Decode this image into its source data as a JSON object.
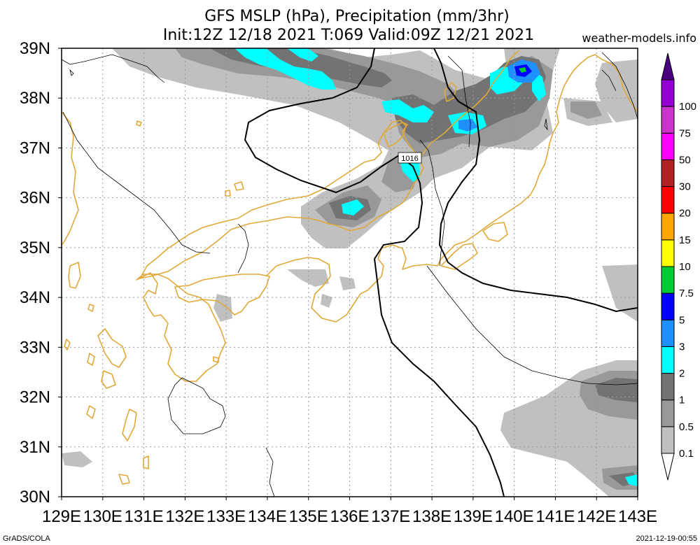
{
  "chart_data": {
    "type": "map",
    "title_line1": "GFS MSLP (hPa), Precipitation (mm/3hr)",
    "title_line2": "Init:12Z 12/18 2021 T:069 Valid:09Z 12/21 2021",
    "site": "weather-models.info",
    "footer_left": "GrADS/COLA",
    "footer_right": "2021-12-19-00:55",
    "lon_range": [
      129,
      143
    ],
    "lat_range": [
      30,
      39
    ],
    "lon_ticks": [
      {
        "value": 129,
        "label": "129E"
      },
      {
        "value": 130,
        "label": "130E"
      },
      {
        "value": 131,
        "label": "131E"
      },
      {
        "value": 132,
        "label": "132E"
      },
      {
        "value": 133,
        "label": "133E"
      },
      {
        "value": 134,
        "label": "134E"
      },
      {
        "value": 135,
        "label": "135E"
      },
      {
        "value": 136,
        "label": "136E"
      },
      {
        "value": 137,
        "label": "137E"
      },
      {
        "value": 138,
        "label": "138E"
      },
      {
        "value": 139,
        "label": "139E"
      },
      {
        "value": 140,
        "label": "140E"
      },
      {
        "value": 141,
        "label": "141E"
      },
      {
        "value": 142,
        "label": "142E"
      },
      {
        "value": 143,
        "label": "143E"
      }
    ],
    "lat_ticks": [
      {
        "value": 30,
        "label": "30N"
      },
      {
        "value": 31,
        "label": "31N"
      },
      {
        "value": 32,
        "label": "32N"
      },
      {
        "value": 33,
        "label": "33N"
      },
      {
        "value": 34,
        "label": "34N"
      },
      {
        "value": 35,
        "label": "35N"
      },
      {
        "value": 36,
        "label": "36N"
      },
      {
        "value": 37,
        "label": "37N"
      },
      {
        "value": 38,
        "label": "38N"
      },
      {
        "value": 39,
        "label": "39N"
      }
    ],
    "grid": "dotted",
    "colorbar": {
      "placement": "right",
      "bins": [
        {
          "label": "0.1",
          "color": "#c0c0c0"
        },
        {
          "label": "0.5",
          "color": "#999999"
        },
        {
          "label": "1",
          "color": "#737373"
        },
        {
          "label": "2",
          "color": "#00ffff"
        },
        {
          "label": "3",
          "color": "#1e90ff"
        },
        {
          "label": "5",
          "color": "#0000ff"
        },
        {
          "label": "7.5",
          "color": "#00cc33"
        },
        {
          "label": "10",
          "color": "#ffff00"
        },
        {
          "label": "15",
          "color": "#ffa500"
        },
        {
          "label": "20",
          "color": "#ff0000"
        },
        {
          "label": "30",
          "color": "#b22222"
        },
        {
          "label": "50",
          "color": "#ff00ff"
        },
        {
          "label": "75",
          "color": "#cc33cc"
        },
        {
          "label": "100",
          "color": "#9400d3"
        }
      ],
      "top_color": "#4b0082"
    },
    "isobars": [
      {
        "value": 1016,
        "label": "1016",
        "label_at": {
          "lon": 137.55,
          "lat": 36.8
        }
      }
    ],
    "colors": {
      "coastline": "#e0a93a",
      "isobar": "#000000",
      "border": "#000000"
    }
  }
}
